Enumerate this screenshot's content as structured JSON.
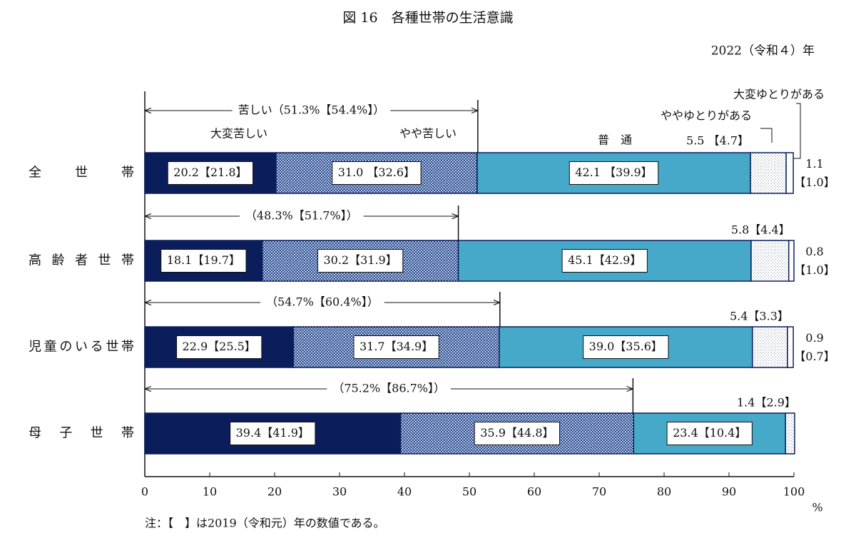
{
  "chart_data": {
    "type": "stacked-barh",
    "title": "図 16　各種世帯の生活意識",
    "subtitle": "2022（令和４）年",
    "categories": [
      "全　世　帯",
      "高 齢 者 世 帯",
      "児童のいる世帯",
      "母　子　世　帯"
    ],
    "series": [
      {
        "name": "大変苦しい",
        "color": "#0b1e5b",
        "pattern": "solid",
        "values": [
          20.2,
          18.1,
          22.9,
          39.4
        ],
        "value_labels": [
          "20.2【21.8】",
          "18.1【19.7】",
          "22.9【25.5】",
          "39.4【41.9】"
        ]
      },
      {
        "name": "やや苦しい",
        "color": "#2b4f95",
        "pattern": "checker",
        "values": [
          31.0,
          30.2,
          31.7,
          35.9
        ],
        "value_labels": [
          "31.0 【32.6】",
          "30.2【31.9】",
          "31.7【34.9】",
          "35.9【44.8】"
        ]
      },
      {
        "name": "普　通",
        "color": "#46a9c9",
        "pattern": "solid",
        "values": [
          42.1,
          45.1,
          39.0,
          23.4
        ],
        "value_labels": [
          "42.1 【39.9】",
          "45.1【42.9】",
          "39.0【35.6】",
          "23.4【10.4】"
        ]
      },
      {
        "name": "ややゆとりがある",
        "color": "#9aa7b8",
        "pattern": "dots",
        "values": [
          5.5,
          5.8,
          5.4,
          1.4
        ],
        "value_labels": [
          "5.5 【4.7】",
          "5.8【4.4】",
          "5.4【3.3】",
          "1.4【2.9】"
        ]
      },
      {
        "name": "大変ゆとりがある",
        "color": "#ffffff",
        "pattern": "solid",
        "values": [
          1.1,
          0.8,
          0.9,
          null
        ],
        "value_labels": [
          [
            "1.1",
            "【1.0】"
          ],
          [
            "0.8",
            "【1.0】"
          ],
          [
            "0.9",
            "【0.7】"
          ],
          null
        ]
      }
    ],
    "totals": [
      {
        "value": 51.3,
        "label": "苦しい（51.3%【54.4%】）"
      },
      {
        "value": 48.3,
        "label": "（48.3%【51.7%】）"
      },
      {
        "value": 54.7,
        "label": "（54.7%【60.4%】）"
      },
      {
        "value": 75.2,
        "label": "（75.2%【86.7%】）"
      }
    ],
    "xlim": [
      0,
      100
    ],
    "xticks": [
      0,
      10,
      20,
      30,
      40,
      50,
      60,
      70,
      80,
      90,
      100
    ],
    "xlabel": "%",
    "note": "注：【　】は2019（令和元）年の数値である。"
  }
}
